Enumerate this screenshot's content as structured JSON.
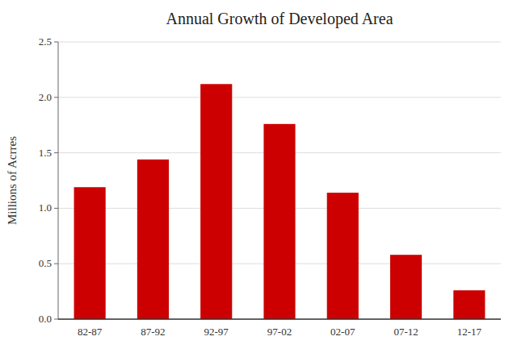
{
  "chart_data": {
    "type": "bar",
    "title": "Annual Growth of Developed Area",
    "ylabel": "Millions of Acrres",
    "categories": [
      "82-87",
      "87-92",
      "92-97",
      "97-02",
      "02-07",
      "07-12",
      "12-17"
    ],
    "values": [
      1.19,
      1.44,
      2.12,
      1.76,
      1.14,
      0.58,
      0.26
    ],
    "color": "#cc0000",
    "ylim": [
      0,
      2.5
    ],
    "yticks": [
      {
        "value": 0.0,
        "label": "0.0"
      },
      0.5,
      {
        "value": 1.0,
        "label": "1.0"
      },
      1.5,
      {
        "value": 2.0,
        "label": "2.0"
      },
      2.5
    ],
    "grid": true
  }
}
